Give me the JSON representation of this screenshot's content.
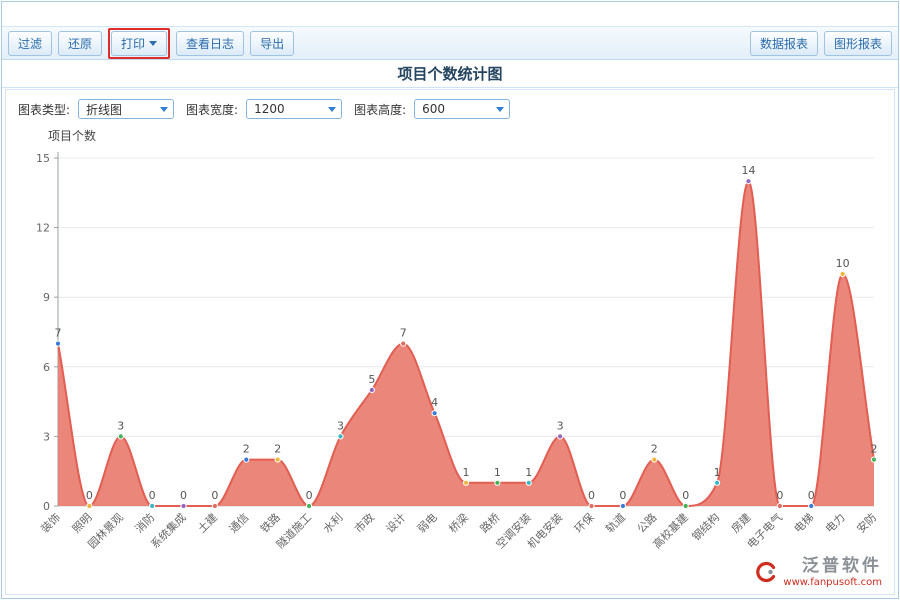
{
  "title": "项目个数统计图",
  "toolbar": {
    "left_buttons": [
      {
        "label": "过滤"
      },
      {
        "label": "还原"
      },
      {
        "label": "打印",
        "has_dropdown": true,
        "highlighted": true
      },
      {
        "label": "查看日志"
      },
      {
        "label": "导出"
      }
    ],
    "right_buttons": [
      {
        "label": "数据报表"
      },
      {
        "label": "图形报表"
      }
    ],
    "highlight_color": "#e02b2b"
  },
  "controls": {
    "chart_type_label": "图表类型:",
    "chart_type_value": "折线图",
    "chart_width_label": "图表宽度:",
    "chart_width_value": "1200",
    "chart_height_label": "图表高度:",
    "chart_height_value": "600"
  },
  "chart_data": {
    "type": "area",
    "title": "项目个数",
    "categories": [
      "装饰",
      "照明",
      "园林景观",
      "消防",
      "系统集成",
      "土建",
      "通信",
      "铁路",
      "隧道施工",
      "水利",
      "市政",
      "设计",
      "弱电",
      "桥梁",
      "路桥",
      "空调安装",
      "机电安装",
      "环保",
      "轨道",
      "公路",
      "高校基建",
      "钢结构",
      "房建",
      "电子电气",
      "电梯",
      "电力",
      "安防"
    ],
    "values": [
      7,
      0,
      3,
      0,
      0,
      0,
      2,
      2,
      0,
      3,
      5,
      7,
      4,
      1,
      1,
      1,
      3,
      0,
      0,
      2,
      0,
      1,
      14,
      0,
      0,
      10,
      2
    ],
    "ylim": [
      0,
      15
    ],
    "yticks": [
      0,
      3,
      6,
      9,
      12,
      15
    ],
    "grid": true,
    "legend": "none",
    "area_color": "#e97d70",
    "line_color": "#e25d52",
    "point_colors": [
      "#3a7bd5",
      "#f0b53c",
      "#46b05a",
      "#36b8c4",
      "#9467bd",
      "#e06b60"
    ]
  },
  "watermark": {
    "brand": "泛普软件",
    "url": "www.fanpusoft.com"
  }
}
